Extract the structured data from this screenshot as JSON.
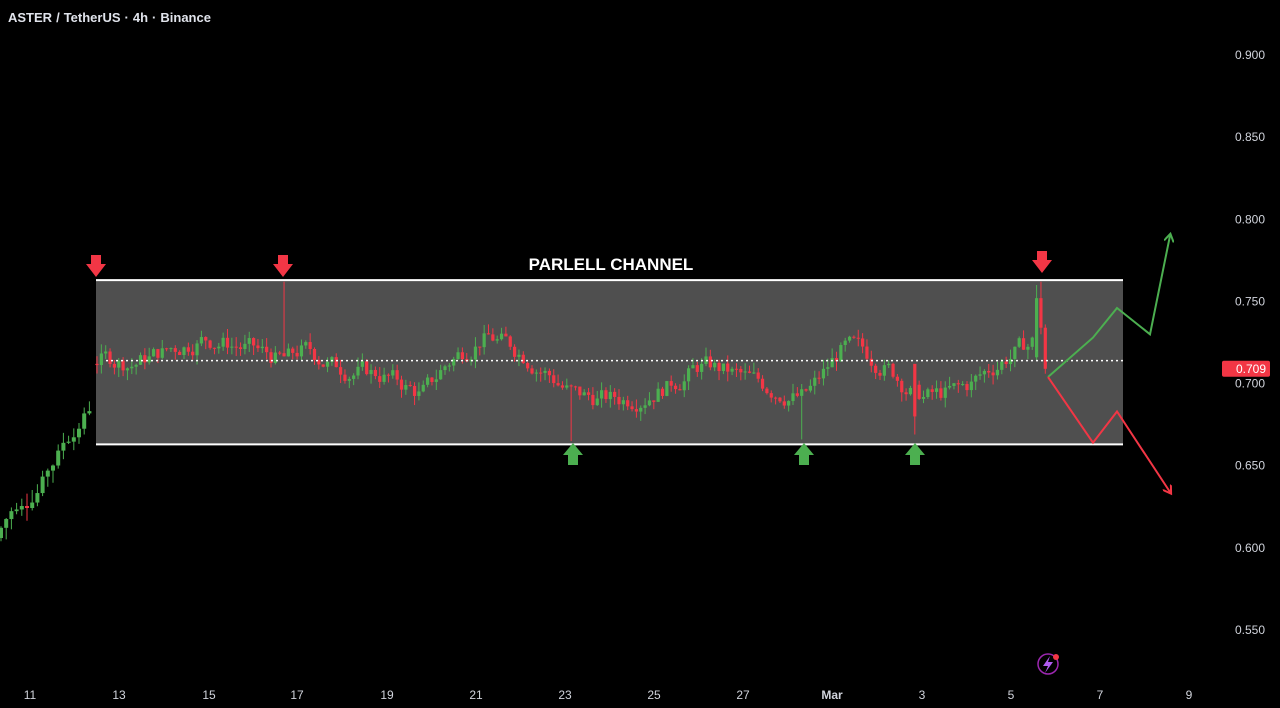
{
  "header": {
    "symbol": "ASTER",
    "quote": "TetherUS",
    "interval": "4h",
    "exchange": "Binance"
  },
  "chart_data": {
    "type": "candlestick",
    "annotation": "PARLELL CHANNEL",
    "current_price_label": "0.709",
    "y_ticks": [
      "0.900",
      "0.850",
      "0.800",
      "0.750",
      "0.700",
      "0.650",
      "0.600",
      "0.550"
    ],
    "y_tick_values": [
      0.9,
      0.85,
      0.8,
      0.75,
      0.7,
      0.65,
      0.6,
      0.55
    ],
    "x_ticks": [
      "11",
      "13",
      "15",
      "17",
      "19",
      "21",
      "23",
      "25",
      "27",
      "Mar",
      "3",
      "5",
      "7",
      "9"
    ],
    "ylim": [
      0.505,
      0.93
    ],
    "channel": {
      "top": 0.763,
      "bottom": 0.663,
      "mid": 0.714
    },
    "colors": {
      "up": "#22ab94",
      "up_main": "#4caf50",
      "down": "#f23645",
      "channel_fill": "#5d5d5d",
      "channel_line": "#ffffff",
      "price_badge": "#f23645",
      "tick_text": "#d1d4dc"
    },
    "top_markers": "red-down-arrow ×3",
    "bottom_markers": "green-up-arrow ×3",
    "projection": {
      "bull_path": [
        0.704,
        0.728,
        0.746,
        0.73,
        0.79
      ],
      "bear_path": [
        0.704,
        0.664,
        0.683,
        0.634
      ]
    }
  },
  "icons": {
    "bolt": "lightning-bolt-icon"
  }
}
